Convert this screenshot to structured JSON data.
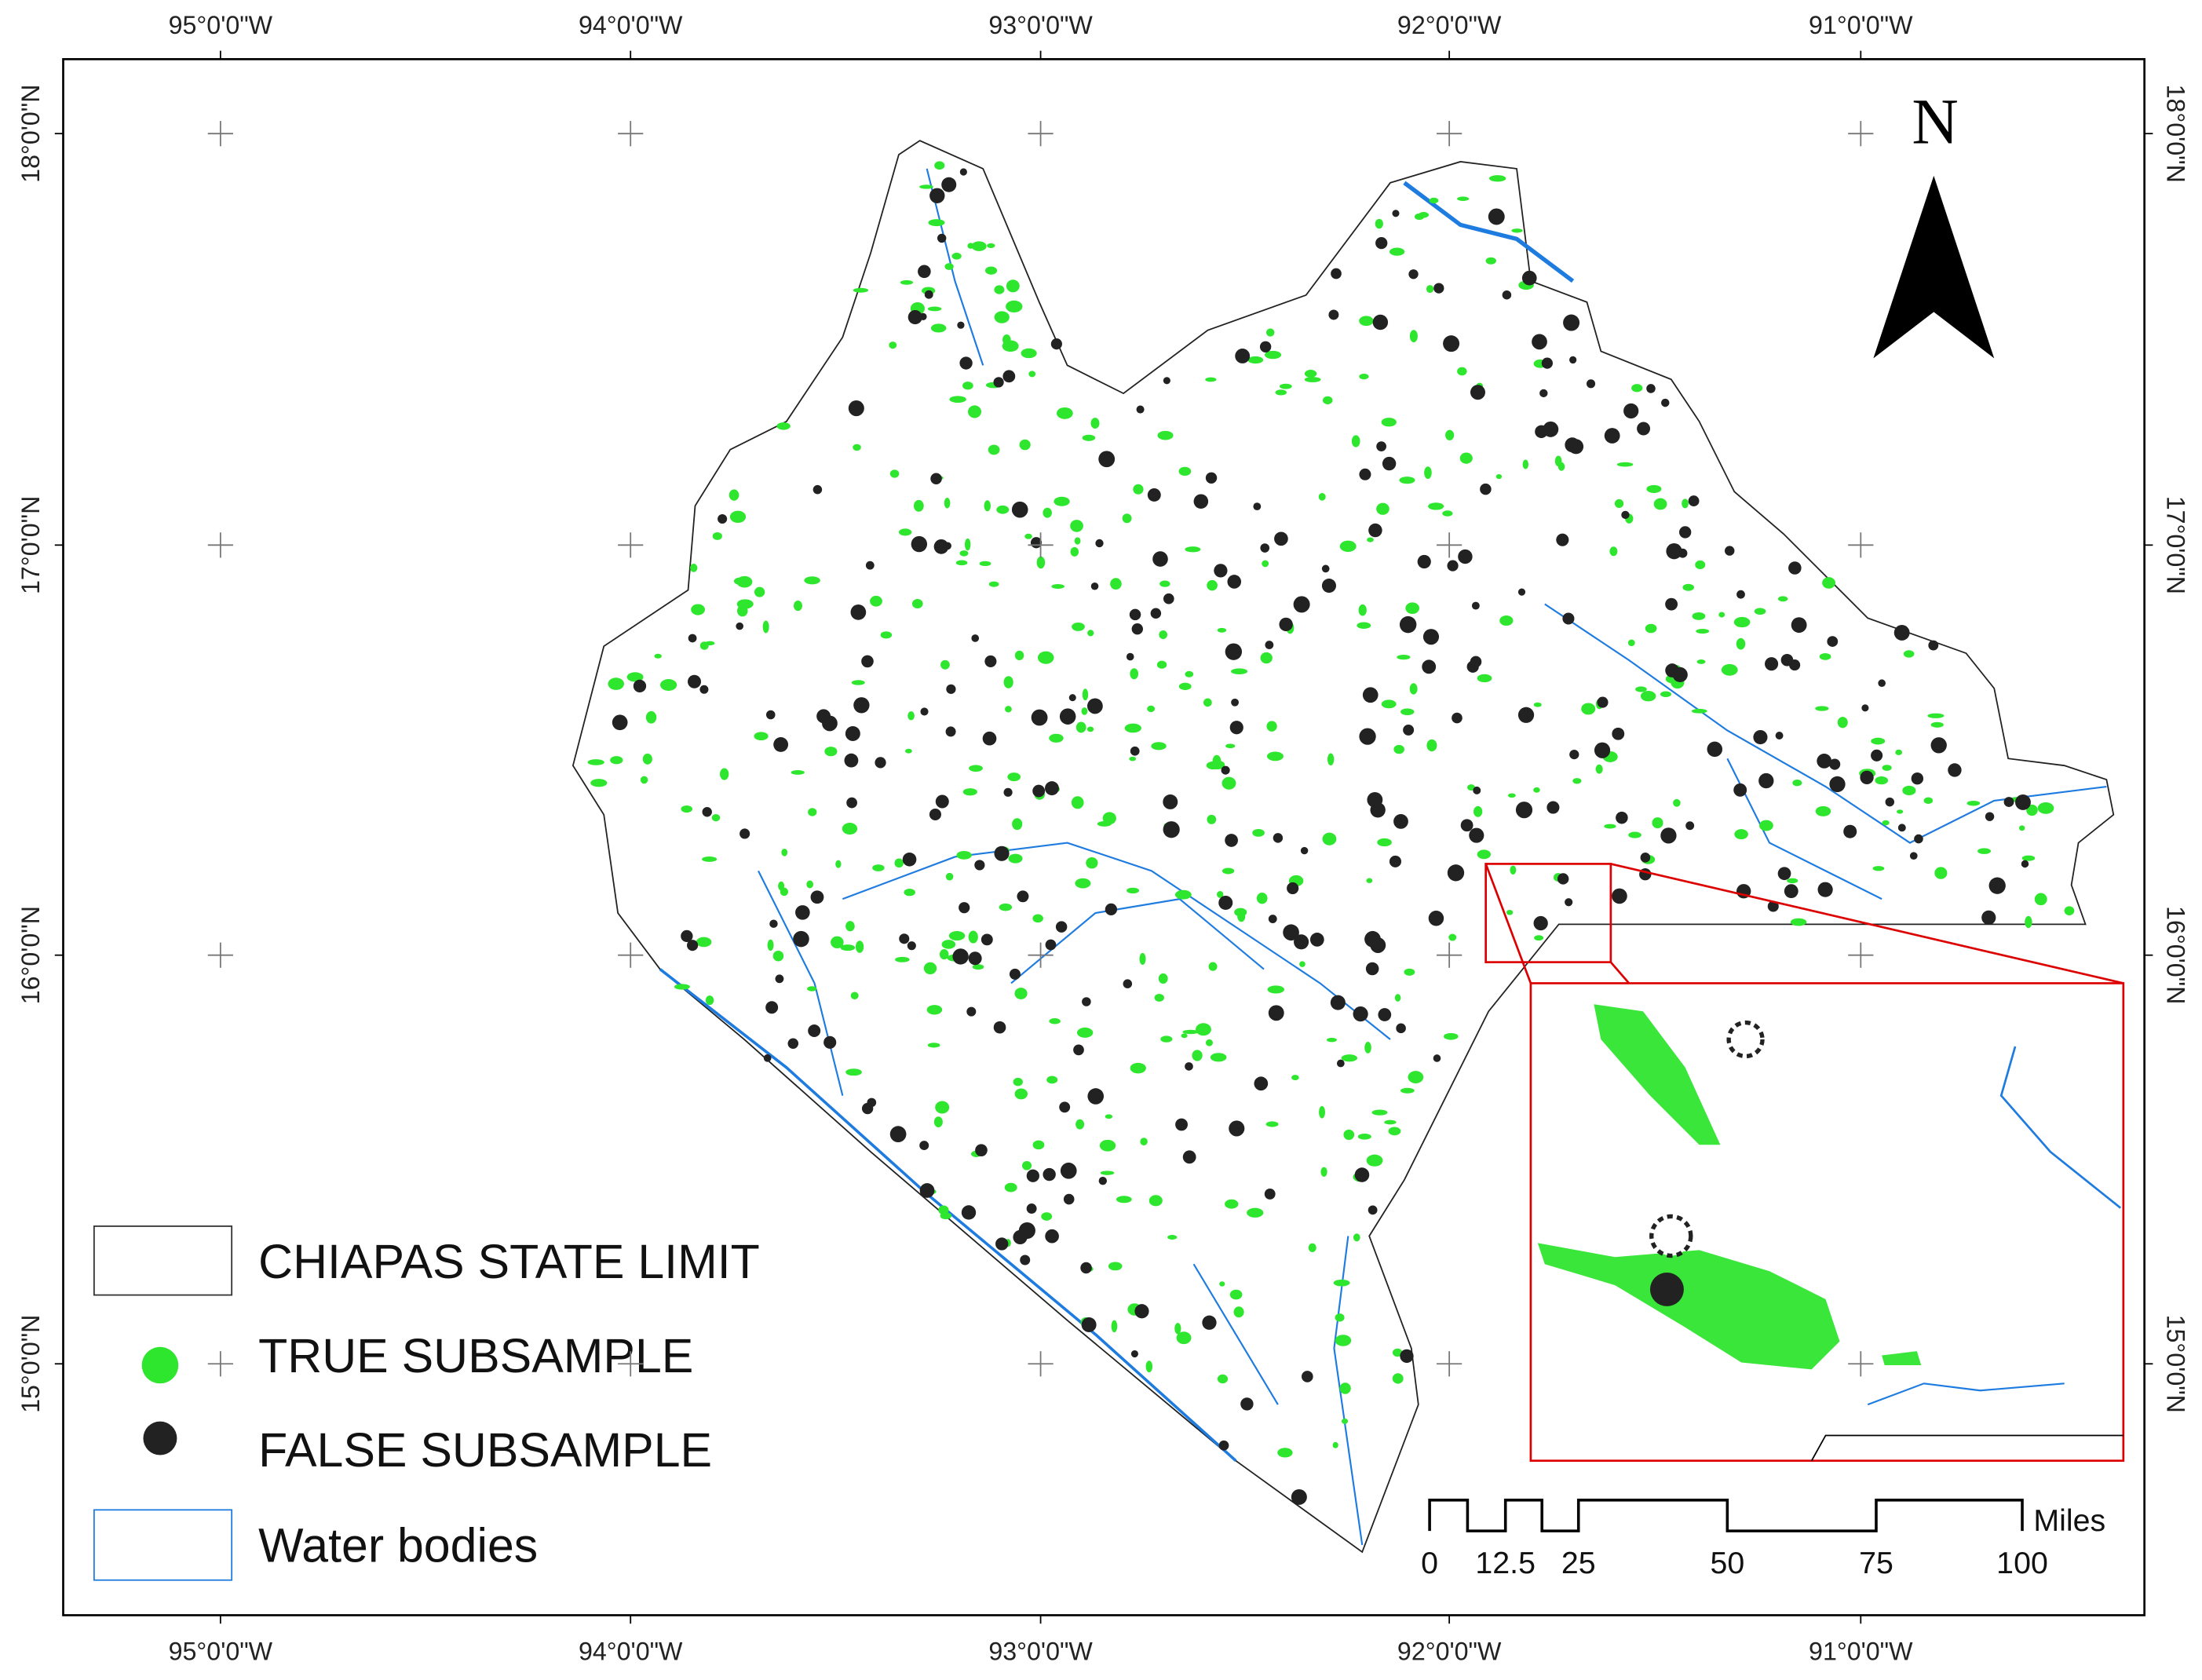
{
  "map": {
    "lon_labels": [
      "95°0'0\"W",
      "94°0'0\"W",
      "93°0'0\"W",
      "92°0'0\"W",
      "91°0'0\"W"
    ],
    "lat_labels": [
      "18°0'0\"N",
      "17°0'0\"N",
      "16°0'0\"N",
      "15°0'0\"N"
    ],
    "north": "N",
    "legend": [
      "CHIAPAS STATE LIMIT",
      "TRUE SUBSAMPLE",
      "FALSE SUBSAMPLE",
      "Water bodies"
    ],
    "scale_bar": {
      "labels": [
        "0",
        "12.5",
        "25",
        "50",
        "75",
        "100"
      ],
      "unit": "Miles"
    }
  }
}
